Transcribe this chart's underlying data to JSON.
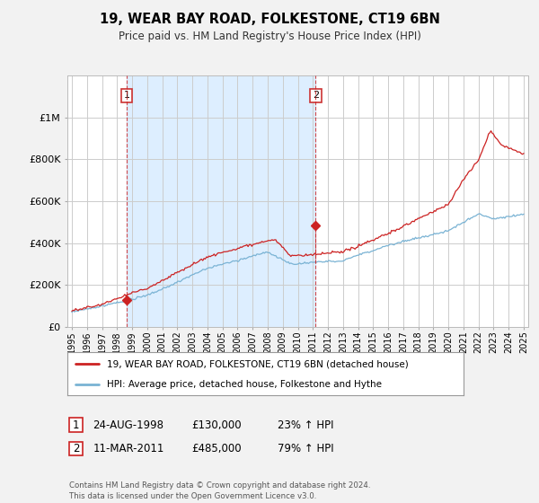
{
  "title": "19, WEAR BAY ROAD, FOLKESTONE, CT19 6BN",
  "subtitle": "Price paid vs. HM Land Registry's House Price Index (HPI)",
  "legend_line1": "19, WEAR BAY ROAD, FOLKESTONE, CT19 6BN (detached house)",
  "legend_line2": "HPI: Average price, detached house, Folkestone and Hythe",
  "footer": "Contains HM Land Registry data © Crown copyright and database right 2024.\nThis data is licensed under the Open Government Licence v3.0.",
  "annotation1_date": "24-AUG-1998",
  "annotation1_price": "£130,000",
  "annotation1_hpi": "23% ↑ HPI",
  "annotation2_date": "11-MAR-2011",
  "annotation2_price": "£485,000",
  "annotation2_hpi": "79% ↑ HPI",
  "sale1_x": 1998.65,
  "sale1_y": 130000,
  "sale2_x": 2011.19,
  "sale2_y": 485000,
  "vline1_x": 1998.65,
  "vline2_x": 2011.19,
  "ylim": [
    0,
    1200000
  ],
  "xlim_start": 1994.7,
  "xlim_end": 2025.3,
  "hpi_color": "#7ab3d4",
  "price_color": "#cc2222",
  "bg_color": "#f2f2f2",
  "plot_bg_color": "#ffffff",
  "shade_color": "#ddeeff",
  "grid_color": "#cccccc",
  "ytick_labels": [
    "£0",
    "£200K",
    "£400K",
    "£600K",
    "£800K",
    "£1M"
  ],
  "ytick_vals": [
    0,
    200000,
    400000,
    600000,
    800000,
    1000000
  ]
}
